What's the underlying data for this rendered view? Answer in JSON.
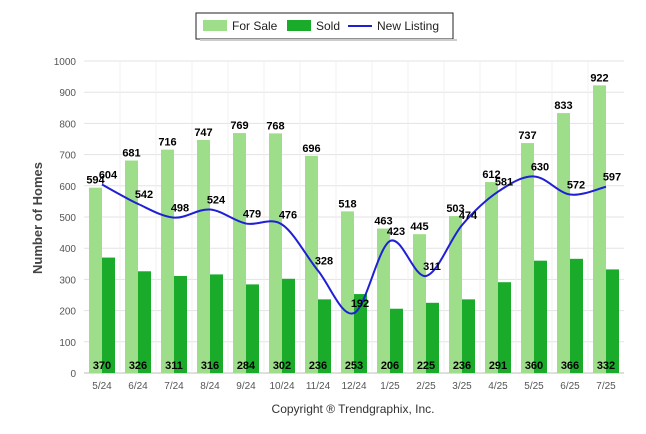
{
  "chart_data": {
    "type": "bar",
    "categories": [
      "5/24",
      "6/24",
      "7/24",
      "8/24",
      "9/24",
      "10/24",
      "11/24",
      "12/24",
      "1/25",
      "2/25",
      "3/25",
      "4/25",
      "5/25",
      "6/25",
      "7/25"
    ],
    "series": [
      {
        "name": "For Sale",
        "type": "bar",
        "color": "#9ede8a",
        "values": [
          594,
          681,
          716,
          747,
          769,
          768,
          696,
          518,
          463,
          445,
          503,
          612,
          737,
          833,
          922
        ]
      },
      {
        "name": "Sold",
        "type": "bar",
        "color": "#1aab2a",
        "values": [
          370,
          326,
          311,
          316,
          284,
          302,
          236,
          253,
          206,
          225,
          236,
          291,
          360,
          366,
          332
        ]
      },
      {
        "name": "New Listing",
        "type": "line",
        "color": "#1f1fd6",
        "values": [
          604,
          542,
          498,
          524,
          479,
          476,
          328,
          192,
          423,
          311,
          474,
          581,
          630,
          572,
          597
        ]
      }
    ],
    "ylabel": "Number of Homes",
    "xlabel": "",
    "ylim": [
      0,
      1000
    ],
    "yticks": [
      0,
      100,
      200,
      300,
      400,
      500,
      600,
      700,
      800,
      900,
      1000
    ],
    "grid": true,
    "legend_position": "top-center"
  },
  "legend": {
    "for_sale": "For Sale",
    "sold": "Sold",
    "new_listing": "New Listing"
  },
  "footer": {
    "copyright": "Copyright ® Trendgraphix, Inc."
  }
}
